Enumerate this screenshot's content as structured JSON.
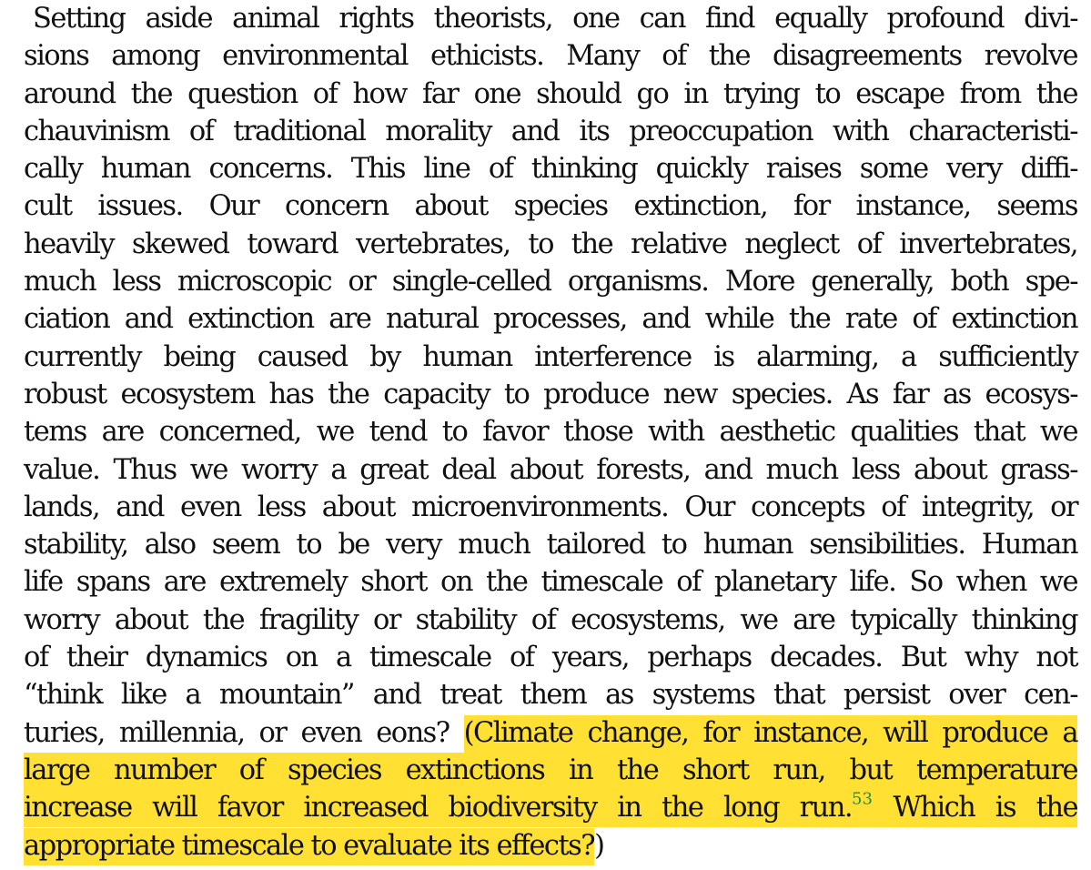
{
  "paragraph": {
    "lines": [
      "Setting aside animal rights theorists, one can find equally profound divi-",
      "sions among environmental ethicists. Many of the disagreements revolve",
      "around the question of how far one should go in trying to escape from the",
      "chauvinism of traditional morality and its preoccupation with characteristi-",
      "cally human concerns. This line of thinking quickly raises some very diffi-",
      "cult issues. Our concern about species extinction, for instance, seems",
      "heavily skewed toward vertebrates, to the relative neglect of invertebrates,",
      "much less microscopic or single-celled organisms. More generally, both spe-",
      "ciation and extinction are natural processes, and while the rate of extinction",
      "currently being caused by human interference is alarming, a sufficiently",
      "robust ecosystem has the capacity to produce new species. As far as ecosys-",
      "tems are concerned, we tend to favor those with aesthetic qualities that we",
      "value. Thus we worry a great deal about forests, and much less about grass-",
      "lands, and even less about microenvironments. Our concepts of integrity, or",
      "stability, also seem to be very much tailored to human sensibilities. Human",
      "life spans are extremely short on the timescale of planetary life. So when we",
      "worry about the fragility or stability of ecosystems, we are typically thinking",
      "of their dynamics on a timescale of years, perhaps decades. But why not",
      "“think like a mountain” and treat them as systems that persist over cen-"
    ],
    "line19_plain": "turies, millennia, or even eons? ",
    "line19_hl": "(Climate change, for instance, will produce a",
    "line20_hl": "large number of species extinctions in the short run, but temperature",
    "line21_hl_a": "increase will favor increased biodiversity in the long run.",
    "footnote_ref": "53",
    "line21_hl_b": " Which is the",
    "line22_hl": "appropriate timescale to evaluate its effects?",
    "line22_plain": ")"
  },
  "colors": {
    "highlight": "#ffe033",
    "footnote": "#2a8a3a",
    "text": "#111111"
  }
}
